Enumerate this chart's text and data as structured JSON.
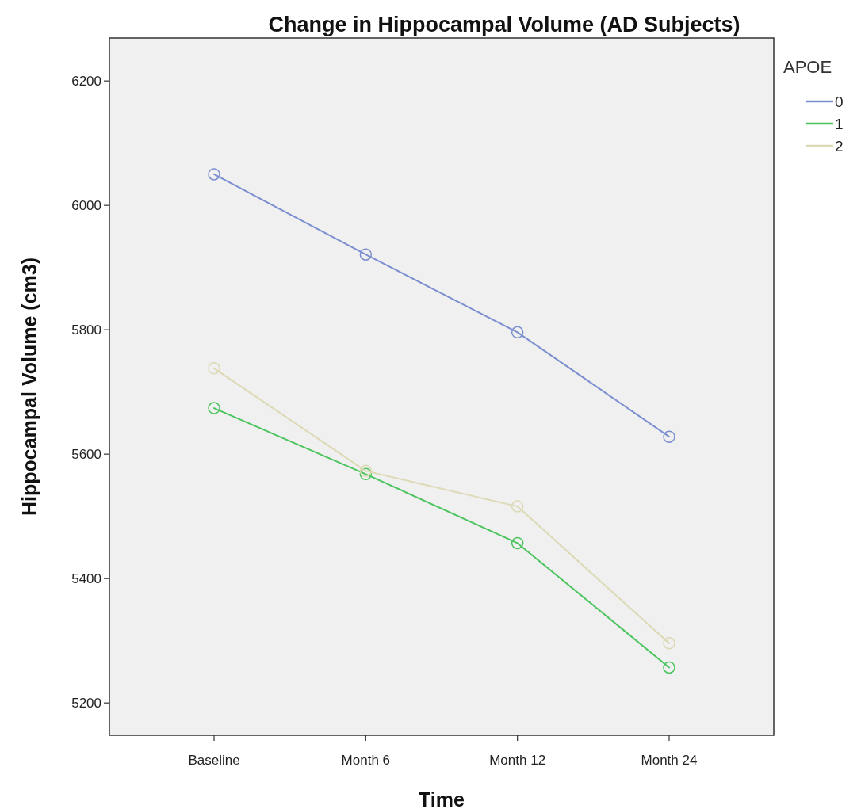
{
  "chart_data": {
    "type": "line",
    "title": "Change in Hippocampal Volume (AD Subjects)",
    "xlabel": "Time",
    "ylabel": "Hippocampal Volume (cm3)",
    "legend_title": "APOE",
    "categories": [
      "Baseline",
      "Month 6",
      "Month 12",
      "Month 24"
    ],
    "series": [
      {
        "name": "0",
        "color": "#7b8fd0",
        "values": [
          6050,
          5921,
          5796,
          5628
        ]
      },
      {
        "name": "1",
        "color": "#4cc45e",
        "values": [
          5674,
          5568,
          5457,
          5257
        ]
      },
      {
        "name": "2",
        "color": "#dcd9b4",
        "values": [
          5738,
          5573,
          5516,
          5296
        ]
      }
    ],
    "ylim": [
      5148,
      6269
    ],
    "yticks": [
      5200,
      5400,
      5600,
      5800,
      6000,
      6200
    ],
    "grid": false,
    "legend": "top right",
    "marker": "circle",
    "line_style": "solid"
  }
}
